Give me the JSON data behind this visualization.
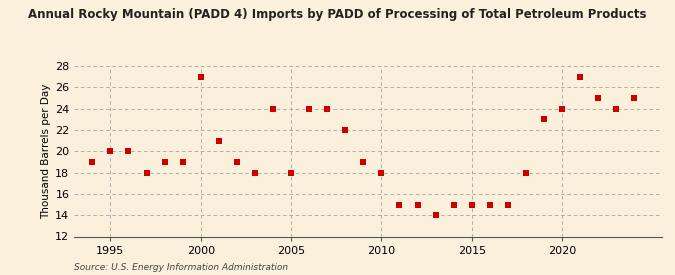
{
  "title": "Annual Rocky Mountain (PADD 4) Imports by PADD of Processing of Total Petroleum Products",
  "ylabel": "Thousand Barrels per Day",
  "source": "Source: U.S. Energy Information Administration",
  "background_color": "#faf0dc",
  "marker_color": "#cc0000",
  "grid_color": "#aaaaaa",
  "years": [
    1994,
    1995,
    1996,
    1997,
    1998,
    1999,
    2000,
    2001,
    2002,
    2003,
    2004,
    2005,
    2006,
    2007,
    2008,
    2009,
    2010,
    2011,
    2012,
    2013,
    2014,
    2015,
    2016,
    2017,
    2018,
    2019,
    2020,
    2021,
    2022,
    2023,
    2024
  ],
  "values": [
    19,
    20,
    20,
    18,
    19,
    19,
    27,
    21,
    19,
    18,
    24,
    18,
    24,
    24,
    22,
    19,
    18,
    15,
    15,
    14,
    15,
    15,
    15,
    15,
    18,
    23,
    24,
    27,
    25,
    24,
    25
  ],
  "xlim": [
    1993.0,
    2025.5
  ],
  "ylim": [
    12,
    28
  ],
  "yticks": [
    12,
    14,
    16,
    18,
    20,
    22,
    24,
    26,
    28
  ],
  "xticks": [
    1995,
    2000,
    2005,
    2010,
    2015,
    2020
  ],
  "vgrid_x": [
    1995,
    2000,
    2005,
    2010,
    2015,
    2020
  ],
  "hgrid_y": [
    14,
    16,
    18,
    20,
    22,
    24,
    26,
    28
  ]
}
